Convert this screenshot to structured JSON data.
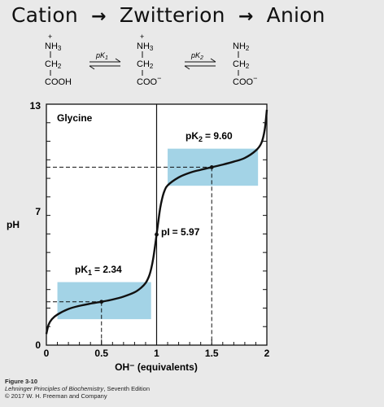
{
  "title": {
    "part1": "Cation",
    "part2": "Zwitterion",
    "part3": "Anion",
    "arrow": "→"
  },
  "structures": {
    "cation": {
      "charge": "+",
      "top": "NH",
      "top_sub": "3",
      "mid": "CH",
      "mid_sub": "2",
      "bottom": "COOH"
    },
    "zwitterion": {
      "charge": "+",
      "top": "NH",
      "top_sub": "3",
      "mid": "CH",
      "mid_sub": "2",
      "bottom": "COO",
      "bottom_charge": "−"
    },
    "anion": {
      "top": "NH",
      "top_sub": "2",
      "mid": "CH",
      "mid_sub": "2",
      "bottom": "COO",
      "bottom_charge": "−"
    },
    "eq1_label": "pK",
    "eq1_sub": "1",
    "eq2_label": "pK",
    "eq2_sub": "2"
  },
  "chart_data": {
    "type": "line",
    "label": "Glycine",
    "xlabel": "OH⁻ (equivalents)",
    "ylabel": "pH",
    "xlim": [
      0,
      2
    ],
    "ylim": [
      0,
      13
    ],
    "x_ticks": [
      "0",
      "0.5",
      "1",
      "1.5",
      "2"
    ],
    "y_ticks": [
      "0",
      "7",
      "13"
    ],
    "points": [
      [
        0.0,
        0.6
      ],
      [
        0.02,
        1.1
      ],
      [
        0.05,
        1.4
      ],
      [
        0.1,
        1.65
      ],
      [
        0.2,
        1.95
      ],
      [
        0.3,
        2.12
      ],
      [
        0.4,
        2.24
      ],
      [
        0.5,
        2.34
      ],
      [
        0.6,
        2.46
      ],
      [
        0.7,
        2.62
      ],
      [
        0.8,
        2.85
      ],
      [
        0.86,
        3.1
      ],
      [
        0.9,
        3.35
      ],
      [
        0.93,
        3.7
      ],
      [
        0.95,
        4.1
      ],
      [
        0.97,
        4.7
      ],
      [
        1.0,
        5.97
      ],
      [
        1.03,
        7.3
      ],
      [
        1.05,
        7.9
      ],
      [
        1.07,
        8.3
      ],
      [
        1.1,
        8.62
      ],
      [
        1.2,
        9.05
      ],
      [
        1.3,
        9.3
      ],
      [
        1.4,
        9.46
      ],
      [
        1.5,
        9.6
      ],
      [
        1.6,
        9.74
      ],
      [
        1.7,
        9.9
      ],
      [
        1.8,
        10.1
      ],
      [
        1.9,
        10.5
      ],
      [
        1.95,
        10.9
      ],
      [
        1.98,
        11.6
      ],
      [
        2.0,
        12.7
      ]
    ],
    "buffer_regions": [
      {
        "x": [
          0.1,
          0.95
        ],
        "y": [
          1.4,
          3.4
        ]
      },
      {
        "x": [
          1.1,
          1.92
        ],
        "y": [
          8.6,
          10.6
        ]
      }
    ],
    "annotations": [
      {
        "text": "pK",
        "sub": "1",
        "value": "= 2.34",
        "x": 0.5,
        "y": 2.34
      },
      {
        "text": "pI",
        "value": "= 5.97",
        "x": 1.0,
        "y": 5.97
      },
      {
        "text": "pK",
        "sub": "2",
        "value": "= 9.60",
        "x": 1.5,
        "y": 9.6
      }
    ],
    "colors": {
      "buffer": "#a3d3e6",
      "line": "#111111",
      "background": "#ffffff"
    }
  },
  "caption": {
    "figure": "Figure 3-10",
    "book": "Lehninger Principles of Biochemistry",
    "edition": ", Seventh Edition",
    "copyright": "© 2017 W. H. Freeman and Company"
  }
}
